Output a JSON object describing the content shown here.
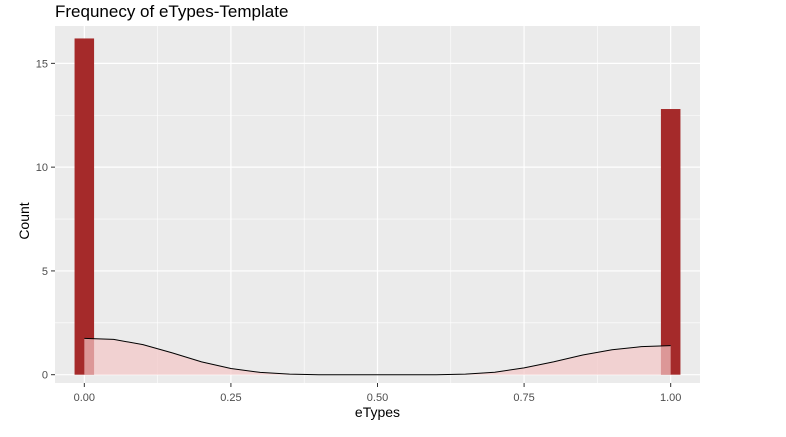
{
  "chart_data": {
    "type": "bar",
    "title": "Frequnecy of eTypes-Template",
    "xlabel": "eTypes",
    "ylabel": "Count",
    "xlim": [
      -0.05,
      1.05
    ],
    "ylim": [
      -0.4,
      16.8
    ],
    "x_ticks": [
      0.0,
      0.25,
      0.5,
      0.75,
      1.0
    ],
    "x_tick_labels": [
      "0.00",
      "0.25",
      "0.50",
      "0.75",
      "1.00"
    ],
    "y_ticks": [
      0,
      5,
      10,
      15
    ],
    "y_tick_labels": [
      "0",
      "5",
      "10",
      "15"
    ],
    "bar_width": 0.0333,
    "bars": [
      {
        "x": 0.0,
        "value": 16.2
      },
      {
        "x": 1.0,
        "value": 12.8
      }
    ],
    "density": {
      "x": [
        0.0,
        0.05,
        0.1,
        0.15,
        0.2,
        0.25,
        0.3,
        0.35,
        0.4,
        0.45,
        0.5,
        0.55,
        0.6,
        0.65,
        0.7,
        0.75,
        0.8,
        0.85,
        0.9,
        0.95,
        1.0
      ],
      "y": [
        1.75,
        1.7,
        1.45,
        1.05,
        0.62,
        0.3,
        0.11,
        0.03,
        0.0,
        0.0,
        0.0,
        0.0,
        0.0,
        0.03,
        0.12,
        0.33,
        0.62,
        0.95,
        1.2,
        1.35,
        1.4
      ]
    },
    "grid": true,
    "colors": {
      "panel": "#ebebeb",
      "grid_major": "#ffffff",
      "bar": "#a52a2a",
      "density_fill": "#f4c6c6",
      "density_line": "#000000",
      "tick_text": "#4d4d4d"
    }
  }
}
